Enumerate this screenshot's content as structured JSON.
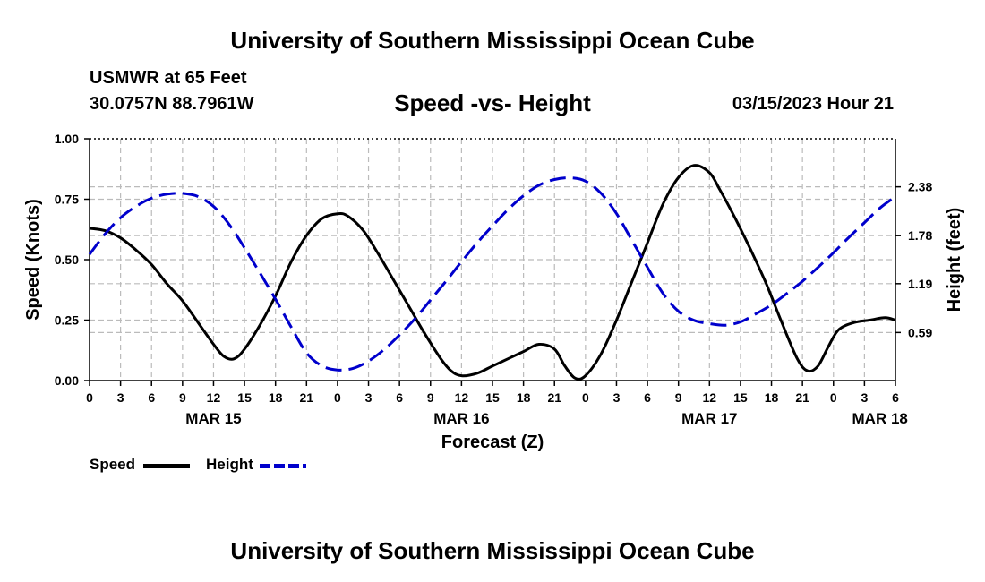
{
  "header": {
    "title": "University of Southern Mississippi Ocean Cube",
    "station": "USMWR at 65 Feet",
    "coordinates": "30.0757N  88.7961W",
    "subtitle": "Speed -vs- Height",
    "datetime": "03/15/2023 Hour 21"
  },
  "footer": {
    "title": "University of Southern Mississippi Ocean Cube"
  },
  "legend": {
    "speed_label": "Speed",
    "height_label": "Height"
  },
  "colors": {
    "speed": "#000000",
    "height": "#0000cc",
    "grid": "#bbbbbb"
  },
  "chart_data": {
    "type": "line",
    "title": "Speed -vs- Height",
    "xlabel": "Forecast (Z)",
    "ylabel": "Speed (Knots)",
    "y2label": "Height (feet)",
    "x_unit": "hours since MAR 15 00Z",
    "xlim": [
      0,
      78
    ],
    "ylim": [
      0,
      1.0
    ],
    "y2lim": [
      0,
      2.97
    ],
    "x_tick_values": [
      0,
      3,
      6,
      9,
      12,
      15,
      18,
      21,
      24,
      27,
      30,
      33,
      36,
      39,
      42,
      45,
      48,
      51,
      54,
      57,
      60,
      63,
      66,
      69,
      72,
      75,
      78
    ],
    "x_tick_labels": [
      "0",
      "3",
      "6",
      "9",
      "12",
      "15",
      "18",
      "21",
      "0",
      "3",
      "6",
      "9",
      "12",
      "15",
      "18",
      "21",
      "0",
      "3",
      "6",
      "9",
      "12",
      "15",
      "18",
      "21",
      "0",
      "3",
      "6"
    ],
    "date_labels": [
      {
        "x": 12,
        "label": "MAR 15"
      },
      {
        "x": 36,
        "label": "MAR 16"
      },
      {
        "x": 60,
        "label": "MAR 17"
      },
      {
        "x": 76.5,
        "label": "MAR 18"
      }
    ],
    "y_tick_values": [
      0,
      0.25,
      0.5,
      0.75,
      1.0
    ],
    "y_tick_labels": [
      "0.00",
      "0.25",
      "0.50",
      "0.75",
      "1.00"
    ],
    "y2_tick_values": [
      0.59,
      1.19,
      1.78,
      2.38
    ],
    "y2_tick_labels": [
      "0.59",
      "1.19",
      "1.78",
      "2.38"
    ],
    "series": [
      {
        "name": "Speed",
        "axis": "left",
        "style": "solid",
        "x": [
          0,
          1.5,
          3,
          4.5,
          6,
          7.5,
          9,
          10.5,
          12,
          13,
          14,
          15,
          16.5,
          18,
          19.5,
          21,
          22.5,
          24,
          25,
          26.5,
          28,
          29.5,
          31,
          32.5,
          34,
          35,
          36,
          37.5,
          39,
          40.5,
          42,
          43.5,
          45,
          46,
          47,
          48,
          49.5,
          51,
          52.5,
          54,
          55.5,
          57,
          58.5,
          60,
          61,
          62.5,
          64,
          65.5,
          67,
          68.5,
          69.5,
          70.5,
          71.5,
          72.5,
          74,
          75.5,
          77,
          78
        ],
        "values": [
          0.63,
          0.62,
          0.59,
          0.54,
          0.48,
          0.4,
          0.33,
          0.24,
          0.15,
          0.1,
          0.09,
          0.13,
          0.23,
          0.35,
          0.49,
          0.6,
          0.67,
          0.69,
          0.68,
          0.62,
          0.52,
          0.41,
          0.3,
          0.19,
          0.09,
          0.04,
          0.02,
          0.03,
          0.06,
          0.09,
          0.12,
          0.15,
          0.13,
          0.06,
          0.01,
          0.02,
          0.11,
          0.25,
          0.41,
          0.57,
          0.73,
          0.84,
          0.89,
          0.86,
          0.79,
          0.67,
          0.54,
          0.4,
          0.24,
          0.09,
          0.04,
          0.06,
          0.14,
          0.21,
          0.24,
          0.25,
          0.26,
          0.25
        ]
      },
      {
        "name": "Height",
        "axis": "right",
        "style": "dashed",
        "x": [
          0,
          1.5,
          3,
          4.5,
          6,
          7.5,
          9,
          10.5,
          12,
          13.5,
          15,
          16.5,
          18,
          19.5,
          21,
          22.5,
          24,
          25.5,
          27,
          28.5,
          30,
          31.5,
          33,
          34.5,
          36,
          37.5,
          39,
          40.5,
          42,
          43.5,
          45,
          46.5,
          48,
          49.5,
          51,
          52.5,
          54,
          55.5,
          57,
          58.5,
          60,
          61.5,
          63,
          64.5,
          66,
          67.5,
          69,
          70.5,
          72,
          73.5,
          75,
          76.5,
          78
        ],
        "values": [
          1.55,
          1.8,
          2.0,
          2.14,
          2.24,
          2.29,
          2.3,
          2.26,
          2.14,
          1.92,
          1.63,
          1.32,
          1.0,
          0.66,
          0.34,
          0.18,
          0.13,
          0.15,
          0.24,
          0.38,
          0.56,
          0.76,
          0.99,
          1.22,
          1.46,
          1.69,
          1.9,
          2.1,
          2.27,
          2.4,
          2.47,
          2.49,
          2.45,
          2.3,
          2.05,
          1.72,
          1.39,
          1.07,
          0.85,
          0.74,
          0.7,
          0.68,
          0.72,
          0.82,
          0.93,
          1.07,
          1.22,
          1.39,
          1.57,
          1.76,
          1.94,
          2.12,
          2.26
        ]
      }
    ]
  }
}
